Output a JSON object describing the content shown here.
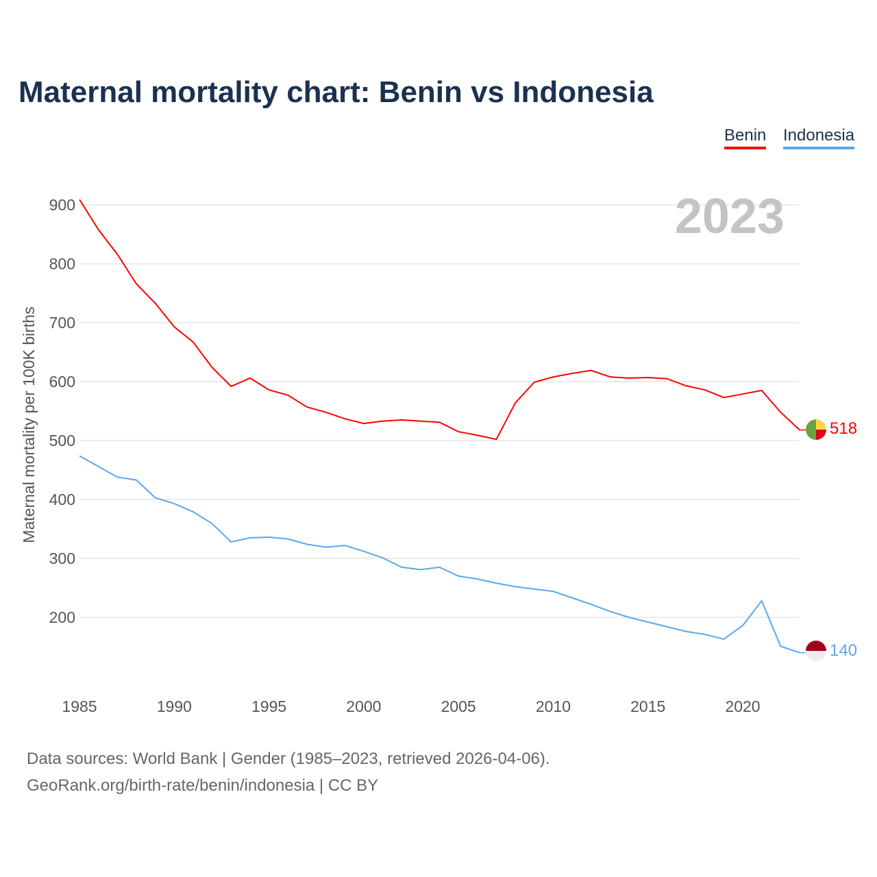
{
  "chart_data": {
    "type": "line",
    "title": "Maternal mortality chart: Benin vs Indonesia",
    "ylabel": "Maternal mortality per 100K births",
    "xlabel": "",
    "ylim": [
      100,
      900
    ],
    "xlim": [
      1985,
      2023
    ],
    "yticks": [
      200,
      300,
      400,
      500,
      600,
      700,
      800,
      900
    ],
    "xticks": [
      1985,
      1990,
      1995,
      2000,
      2005,
      2010,
      2015,
      2020
    ],
    "year_label": "2023",
    "legend_placement": "top-right",
    "x": [
      1985,
      1986,
      1987,
      1988,
      1989,
      1990,
      1991,
      1992,
      1993,
      1994,
      1995,
      1996,
      1997,
      1998,
      1999,
      2000,
      2001,
      2002,
      2003,
      2004,
      2005,
      2006,
      2007,
      2008,
      2009,
      2010,
      2011,
      2012,
      2013,
      2014,
      2015,
      2016,
      2017,
      2018,
      2019,
      2020,
      2021,
      2022,
      2023
    ],
    "series": [
      {
        "name": "Benin",
        "color": "#ff0000",
        "end_label": "518",
        "values": [
          909,
          858,
          816,
          766,
          733,
          693,
          667,
          624,
          592,
          606,
          586,
          577,
          557,
          548,
          537,
          529,
          533,
          535,
          533,
          531,
          515,
          509,
          502,
          564,
          599,
          608,
          614,
          619,
          608,
          606,
          607,
          605,
          593,
          586,
          573,
          579,
          585,
          548,
          518
        ]
      },
      {
        "name": "Indonesia",
        "color": "#5aa6ec",
        "end_label": "140",
        "values": [
          474,
          456,
          438,
          433,
          403,
          393,
          379,
          359,
          328,
          335,
          336,
          333,
          324,
          319,
          322,
          312,
          301,
          285,
          281,
          285,
          270,
          265,
          258,
          252,
          248,
          244,
          233,
          222,
          210,
          200,
          192,
          184,
          176,
          171,
          163,
          186,
          228,
          151,
          140
        ]
      }
    ]
  },
  "footer": {
    "line1": "Data sources: World Bank | Gender (1985–2023, retrieved 2026-04-06).",
    "line2": "GeoRank.org/birth-rate/benin/indonesia | CC BY"
  }
}
